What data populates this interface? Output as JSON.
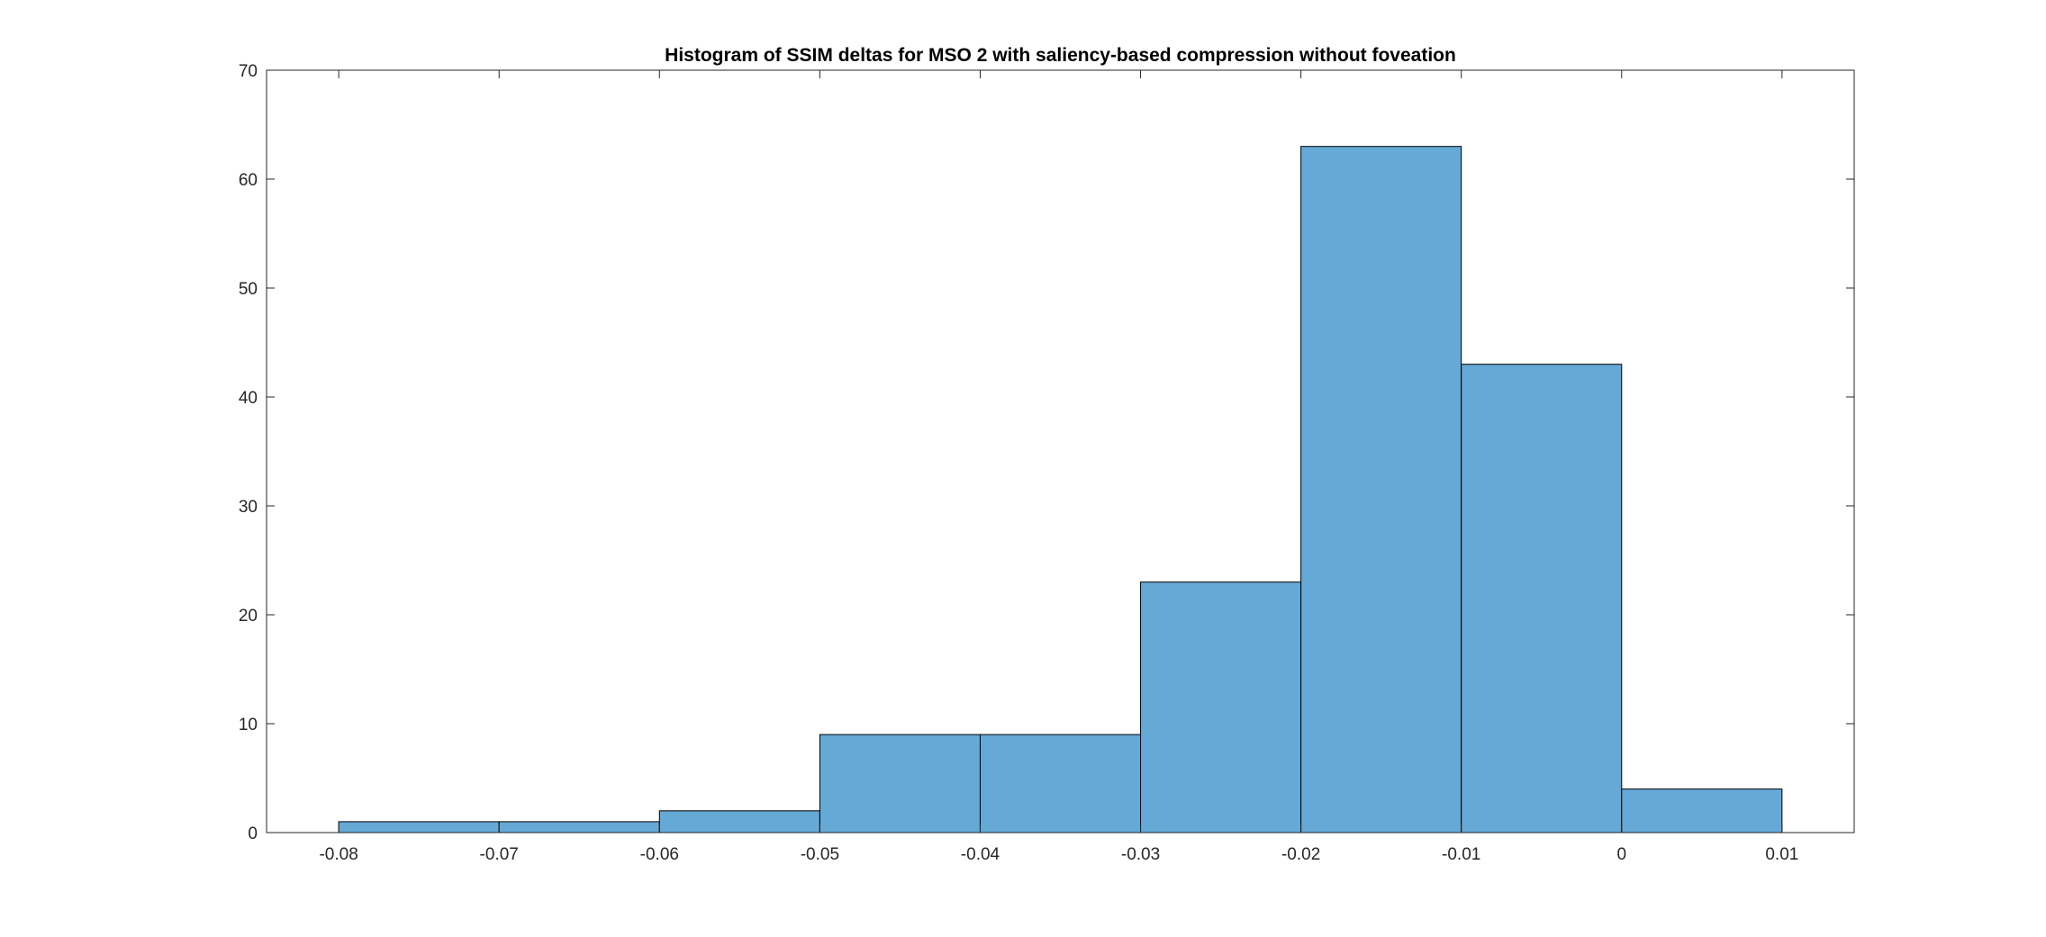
{
  "chart_data": {
    "type": "bar",
    "title": "Histogram of SSIM deltas for MSO 2 with saliency-based compression without foveation",
    "xlabel": "",
    "ylabel": "",
    "bin_edges": [
      -0.08,
      -0.07,
      -0.06,
      -0.05,
      -0.04,
      -0.03,
      -0.02,
      -0.01,
      0,
      0.01
    ],
    "counts": [
      1,
      1,
      2,
      9,
      9,
      23,
      63,
      43,
      4
    ],
    "xlim": [
      -0.0845,
      0.0145
    ],
    "ylim": [
      0,
      70
    ],
    "x_ticks": [
      -0.08,
      -0.07,
      -0.06,
      -0.05,
      -0.04,
      -0.03,
      -0.02,
      -0.01,
      0,
      0.01
    ],
    "x_tick_labels": [
      "-0.08",
      "-0.07",
      "-0.06",
      "-0.05",
      "-0.04",
      "-0.03",
      "-0.02",
      "-0.01",
      "0",
      "0.01"
    ],
    "y_ticks": [
      0,
      10,
      20,
      30,
      40,
      50,
      60,
      70
    ],
    "y_tick_labels": [
      "0",
      "10",
      "20",
      "30",
      "40",
      "50",
      "60",
      "70"
    ],
    "grid": false,
    "legend": "none",
    "colors": {
      "bar_fill": "#65a9d7",
      "bar_edge": "#000000",
      "axis": "#262626"
    }
  }
}
